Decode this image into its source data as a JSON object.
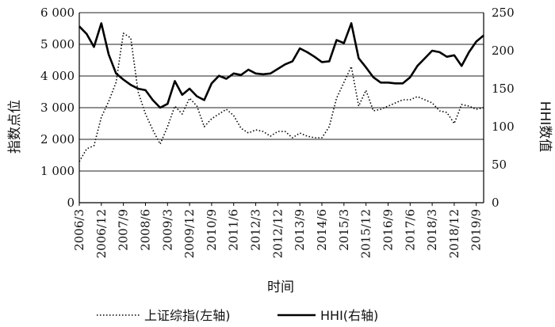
{
  "chart_data": {
    "type": "line",
    "xlabel": "时间",
    "ylabel_left": "指数点位",
    "ylabel_right": "HHI数值",
    "ylim_left": [
      0,
      6000
    ],
    "ylim_right": [
      0,
      250
    ],
    "yticks_left": [
      "0",
      "1 000",
      "2 000",
      "3 000",
      "4 000",
      "5 000",
      "6 000"
    ],
    "yticks_right": [
      "0",
      "50",
      "100",
      "150",
      "200",
      "250"
    ],
    "yticks_left_values": [
      0,
      1000,
      2000,
      3000,
      4000,
      5000,
      6000
    ],
    "yticks_right_values": [
      0,
      50,
      100,
      150,
      200,
      250
    ],
    "grid": true,
    "legend_position": "bottom",
    "x": [
      "2006/3",
      "2006/6",
      "2006/9",
      "2006/12",
      "2007/3",
      "2007/6",
      "2007/9",
      "2007/12",
      "2008/3",
      "2008/6",
      "2008/9",
      "2008/12",
      "2009/3",
      "2009/6",
      "2009/9",
      "2009/12",
      "2010/3",
      "2010/6",
      "2010/9",
      "2010/12",
      "2011/3",
      "2011/6",
      "2011/9",
      "2011/12",
      "2012/3",
      "2012/6",
      "2012/9",
      "2012/12",
      "2013/3",
      "2013/6",
      "2013/9",
      "2013/12",
      "2014/3",
      "2014/6",
      "2014/9",
      "2014/12",
      "2015/3",
      "2015/6",
      "2015/9",
      "2015/12",
      "2016/3",
      "2016/6",
      "2016/9",
      "2016/12",
      "2017/3",
      "2017/6",
      "2017/9",
      "2017/12",
      "2018/3",
      "2018/6",
      "2018/9",
      "2018/12",
      "2019/3",
      "2019/6",
      "2019/9",
      "2019/12"
    ],
    "x_tick_labels": [
      "2006/3",
      "2006/12",
      "2007/9",
      "2008/6",
      "2009/3",
      "2009/12",
      "2010/9",
      "2011/6",
      "2012/3",
      "2012/12",
      "2013/9",
      "2014/6",
      "2015/3",
      "2015/12",
      "2016/9",
      "2017/6",
      "2018/3",
      "2018/12",
      "2019/9"
    ],
    "series": [
      {
        "name": "上证综指(左轴)",
        "axis": "left",
        "style": "dotted",
        "color": "#000000",
        "values": [
          1300,
          1700,
          1800,
          2700,
          3200,
          3800,
          5350,
          5200,
          3500,
          2800,
          2300,
          1850,
          2400,
          3050,
          2800,
          3300,
          3050,
          2400,
          2650,
          2800,
          2950,
          2750,
          2350,
          2200,
          2300,
          2250,
          2100,
          2250,
          2250,
          2050,
          2200,
          2100,
          2050,
          2050,
          2400,
          3300,
          3800,
          4300,
          3050,
          3550,
          2900,
          2950,
          3050,
          3150,
          3250,
          3250,
          3350,
          3250,
          3150,
          2900,
          2850,
          2500,
          3100,
          3050,
          2950,
          3000
        ]
      },
      {
        "name": "HHI(右轴)",
        "axis": "right",
        "style": "solid",
        "color": "#000000",
        "values": [
          232,
          222,
          205,
          236,
          195,
          170,
          162,
          155,
          150,
          148,
          135,
          125,
          130,
          160,
          142,
          150,
          140,
          135,
          157,
          167,
          163,
          170,
          168,
          175,
          170,
          169,
          170,
          176,
          182,
          186,
          203,
          198,
          192,
          185,
          186,
          214,
          210,
          236,
          190,
          178,
          165,
          158,
          158,
          157,
          157,
          165,
          180,
          190,
          200,
          198,
          192,
          194,
          180,
          198,
          212,
          220
        ]
      }
    ]
  }
}
